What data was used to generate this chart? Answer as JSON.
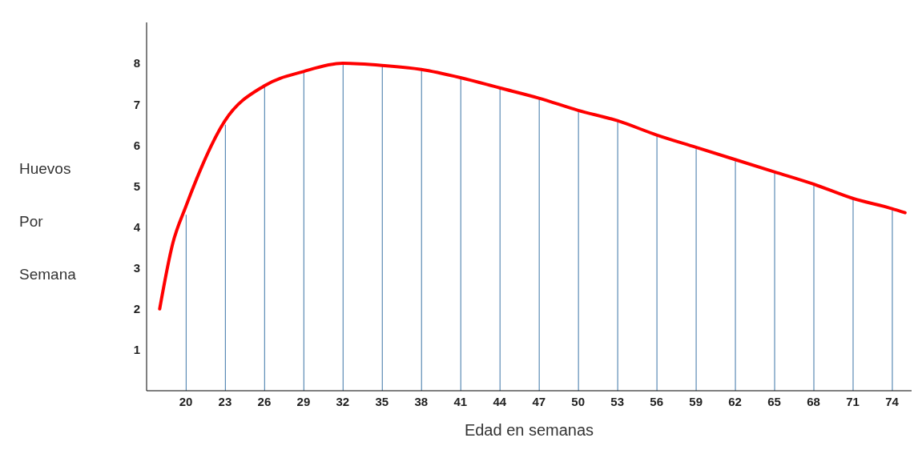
{
  "chart_data": {
    "type": "line",
    "xlabel": "Edad en semanas",
    "ylabel": "Huevos Por Semana",
    "x": [
      18,
      19,
      20,
      23,
      26,
      29,
      32,
      35,
      38,
      41,
      44,
      47,
      50,
      53,
      56,
      59,
      62,
      65,
      68,
      71,
      74,
      75
    ],
    "series": [
      {
        "type": "bar",
        "color": "#5b8bb5",
        "x": [
          20,
          23,
          26,
          29,
          32,
          35,
          38,
          41,
          44,
          47,
          50,
          53,
          56,
          59,
          62,
          65,
          68,
          71,
          74
        ],
        "values": [
          4.3,
          6.5,
          7.45,
          7.8,
          8.0,
          7.95,
          7.85,
          7.65,
          7.4,
          7.15,
          6.85,
          6.6,
          6.25,
          5.95,
          5.65,
          5.35,
          5.05,
          4.7,
          4.45
        ]
      },
      {
        "color": "#ff0000",
        "values": [
          2.0,
          3.6,
          4.5,
          6.6,
          7.45,
          7.8,
          8.0,
          7.95,
          7.85,
          7.65,
          7.4,
          7.15,
          6.85,
          6.6,
          6.25,
          5.95,
          5.65,
          5.35,
          5.05,
          4.7,
          4.45,
          4.35
        ]
      }
    ],
    "xlim": [
      17,
      75.5
    ],
    "xticks": [
      20,
      23,
      26,
      29,
      32,
      35,
      38,
      41,
      44,
      47,
      50,
      53,
      56,
      59,
      62,
      65,
      68,
      71,
      74
    ],
    "ylim": [
      0,
      9
    ],
    "yticks": [
      1,
      2,
      3,
      4,
      5,
      6,
      7,
      8
    ],
    "marker": "none",
    "line_style": "solid"
  }
}
